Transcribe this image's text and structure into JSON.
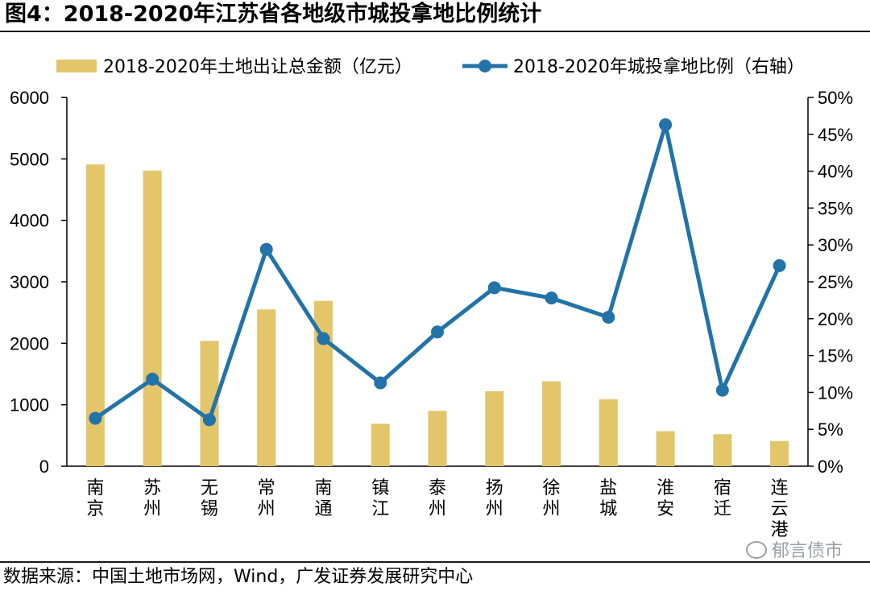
{
  "title": "图4：2018-2020年江苏省各地级市城投拿地比例统计",
  "source": "数据来源：中国土地市场网，Wind，广发证券发展研究中心",
  "watermark": "郁言债市",
  "colors": {
    "bar": "#e3c56a",
    "line": "#2273a8",
    "axis": "#000000"
  },
  "chart_data": {
    "type": "bar",
    "categories": [
      "南京",
      "苏州",
      "无锡",
      "常州",
      "南通",
      "镇江",
      "泰州",
      "扬州",
      "徐州",
      "盐城",
      "淮安",
      "宿迁",
      "连云港"
    ],
    "series": [
      {
        "name": "2018-2020年土地出让总金额（亿元）",
        "type": "bar",
        "axis": "left",
        "values": [
          4910,
          4810,
          2040,
          2550,
          2690,
          690,
          900,
          1220,
          1380,
          1090,
          570,
          520,
          410
        ]
      },
      {
        "name": "2018-2020年城投拿地比例（右轴）",
        "type": "line",
        "axis": "right",
        "values": [
          0.065,
          0.118,
          0.063,
          0.294,
          0.173,
          0.113,
          0.182,
          0.242,
          0.228,
          0.202,
          0.463,
          0.103,
          0.272
        ]
      }
    ],
    "yleft_lim": [
      0,
      6000
    ],
    "yleft_ticks": [
      0,
      1000,
      2000,
      3000,
      4000,
      5000,
      6000
    ],
    "yright_lim": [
      0,
      0.5
    ],
    "yright_ticks": [
      "0%",
      "5%",
      "10%",
      "15%",
      "20%",
      "25%",
      "30%",
      "35%",
      "40%",
      "45%",
      "50%"
    ],
    "legend_position": "top",
    "grid": false
  }
}
